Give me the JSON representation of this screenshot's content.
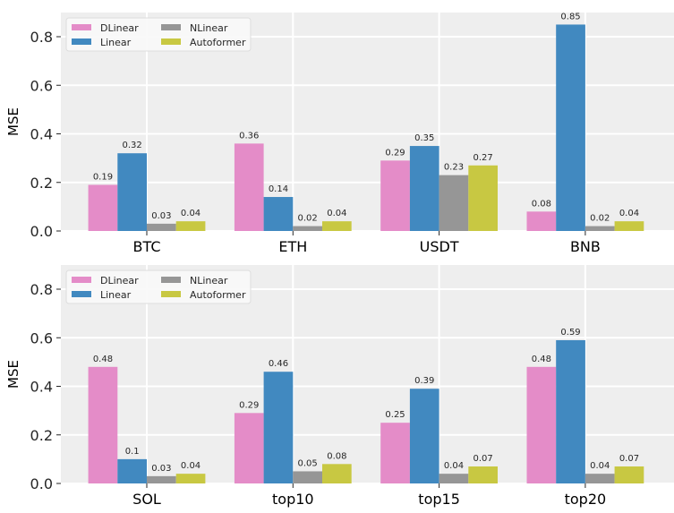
{
  "colors": {
    "DLinear": "#e48cc8",
    "Linear": "#4189c0",
    "NLinear": "#969696",
    "Autoformer": "#c8c842",
    "plot_bg": "#eeeeee",
    "grid": "#ffffff"
  },
  "chart_data": [
    {
      "type": "bar",
      "title": "",
      "xlabel": "",
      "ylabel": "MSE",
      "ylim": [
        0,
        0.9
      ],
      "yticks": [
        0.0,
        0.2,
        0.4,
        0.6,
        0.8
      ],
      "ytick_labels": [
        "0.0",
        "0.2",
        "0.4",
        "0.6",
        "0.8"
      ],
      "grid": true,
      "legend": "top-left",
      "categories": [
        "BTC",
        "ETH",
        "USDT",
        "BNB"
      ],
      "series": [
        {
          "name": "DLinear",
          "values": [
            0.19,
            0.36,
            0.29,
            0.08
          ],
          "labels": [
            "0.19",
            "0.36",
            "0.29",
            "0.08"
          ]
        },
        {
          "name": "Linear",
          "values": [
            0.32,
            0.14,
            0.35,
            0.85
          ],
          "labels": [
            "0.32",
            "0.14",
            "0.35",
            "0.85"
          ]
        },
        {
          "name": "NLinear",
          "values": [
            0.03,
            0.02,
            0.23,
            0.02
          ],
          "labels": [
            "0.03",
            "0.02",
            "0.23",
            "0.02"
          ]
        },
        {
          "name": "Autoformer",
          "values": [
            0.04,
            0.04,
            0.27,
            0.04
          ],
          "labels": [
            "0.04",
            "0.04",
            "0.27",
            "0.04"
          ]
        }
      ]
    },
    {
      "type": "bar",
      "title": "",
      "xlabel": "",
      "ylabel": "MSE",
      "ylim": [
        0,
        0.9
      ],
      "yticks": [
        0.0,
        0.2,
        0.4,
        0.6,
        0.8
      ],
      "ytick_labels": [
        "0.0",
        "0.2",
        "0.4",
        "0.6",
        "0.8"
      ],
      "grid": true,
      "legend": "top-left",
      "categories": [
        "SOL",
        "top10",
        "top15",
        "top20"
      ],
      "series": [
        {
          "name": "DLinear",
          "values": [
            0.48,
            0.29,
            0.25,
            0.48
          ],
          "labels": [
            "0.48",
            "0.29",
            "0.25",
            "0.48"
          ]
        },
        {
          "name": "Linear",
          "values": [
            0.1,
            0.46,
            0.39,
            0.59
          ],
          "labels": [
            "0.1",
            "0.46",
            "0.39",
            "0.59"
          ]
        },
        {
          "name": "NLinear",
          "values": [
            0.03,
            0.05,
            0.04,
            0.04
          ],
          "labels": [
            "0.03",
            "0.05",
            "0.04",
            "0.04"
          ]
        },
        {
          "name": "Autoformer",
          "values": [
            0.04,
            0.08,
            0.07,
            0.07
          ],
          "labels": [
            "0.04",
            "0.08",
            "0.07",
            "0.07"
          ]
        }
      ]
    }
  ]
}
